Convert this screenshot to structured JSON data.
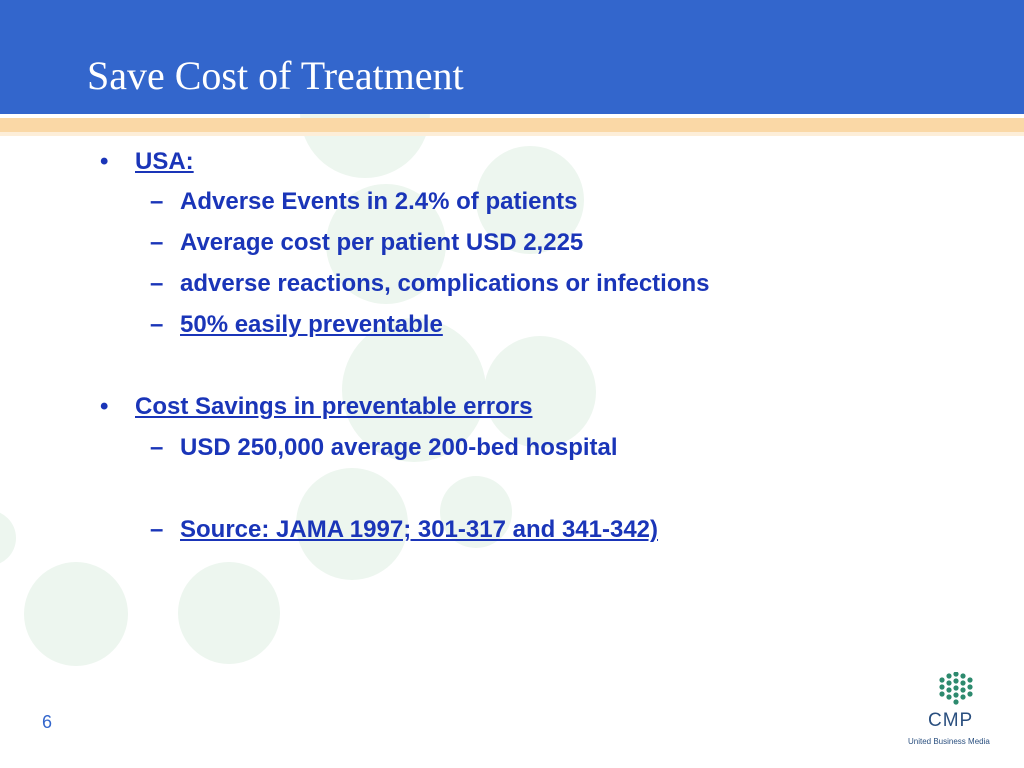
{
  "slide": {
    "title": "Save Cost of Treatment",
    "page_number": "6"
  },
  "content": {
    "bullet1": {
      "marker": "•",
      "heading": "USA:",
      "sub_marker": "–",
      "items": [
        "Adverse Events in 2.4% of patients",
        "Average cost per patient USD 2,225",
        "adverse reactions, complications or infections",
        "50% easily preventable"
      ]
    },
    "bullet2": {
      "marker": "•",
      "heading": "Cost Savings in preventable errors",
      "sub_marker": "–",
      "items": [
        "USD 250,000 average 200-bed hospital"
      ]
    },
    "source": {
      "marker": "–",
      "text": "Source: JAMA 1997; 301-317 and 341-342)"
    }
  },
  "logo": {
    "name": "CMP",
    "subtitle": "United Business Media"
  },
  "colors": {
    "header": "#3366cc",
    "text": "#1a35b8",
    "band": "#fad8a6",
    "circles": "#edf6ef"
  }
}
